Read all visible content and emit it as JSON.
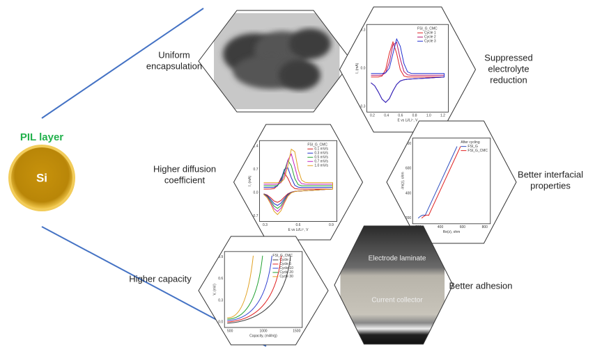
{
  "core": {
    "shell_label": "PIL layer",
    "core_label": "Si"
  },
  "panels": [
    {
      "label_lines": [
        "Uniform",
        "encapsulation"
      ],
      "inset": {
        "kind": "tem"
      }
    },
    {
      "label_lines": [
        "Suppressed",
        "electrolyte",
        "reduction"
      ],
      "inset": {
        "kind": "cv",
        "legend_title": "FSI_G_CMC",
        "legend": [
          {
            "name": "Cycle 1",
            "color": "#e02020"
          },
          {
            "name": "Cycle 2",
            "color": "#b0106a"
          },
          {
            "name": "Cycle 3",
            "color": "#2030d0"
          }
        ],
        "y_label": "I, (mA)",
        "x_label": "E vs Li/Li⁺, V",
        "y_ticks": [
          -0.3,
          {
            "value": 0,
            "label": "0.0"
          },
          0.3
        ],
        "x_ticks": [
          0.2,
          0.4,
          0.6,
          0.8,
          {
            "value": 1,
            "label": "1.0"
          },
          1.2
        ]
      }
    },
    {
      "label_lines": [
        "Higher diffusion",
        "coefficient"
      ],
      "inset": {
        "kind": "cv",
        "legend_title": "FSI_G_CMC",
        "legend": [
          {
            "name": "0.1 mV/s",
            "color": "#d01818"
          },
          {
            "name": "0.3 mV/s",
            "color": "#2030c8"
          },
          {
            "name": "0.5 mV/s",
            "color": "#20a030"
          },
          {
            "name": "0.7 mV/s",
            "color": "#c020c0"
          },
          {
            "name": "1.0 mV/s",
            "color": "#e0a020"
          }
        ],
        "y_label": "I, (mA)",
        "x_label": "E vs Li/Li⁺, V",
        "y_ticks": [
          -0.7,
          {
            "value": 0,
            "label": "0.0"
          },
          0.7,
          1.4
        ],
        "x_ticks": [
          0.3,
          0.6,
          0.9
        ]
      }
    },
    {
      "label_lines": [
        "Better interfacial",
        "properties"
      ],
      "inset": {
        "kind": "eis",
        "legend_title": "After cycling",
        "legend": [
          {
            "name": "FSI_G",
            "color": "#3050c0"
          },
          {
            "name": "FSI_G_CMC",
            "color": "#e02020"
          }
        ],
        "y_label": "-Im(z), ohm",
        "x_label": "Re(z), ohm",
        "y_ticks": [
          200,
          400,
          600,
          800
        ],
        "x_ticks": [
          200,
          400,
          600,
          800
        ]
      }
    },
    {
      "label_lines": [
        "Higher capacity"
      ],
      "inset": {
        "kind": "cap",
        "legend_title": "FSI_G_CMC",
        "legend": [
          {
            "name": "Cycle 1",
            "color": "#404040"
          },
          {
            "name": "Cycle 5",
            "color": "#e02020"
          },
          {
            "name": "Cycle 10",
            "color": "#3040d0"
          },
          {
            "name": "Cycle 20",
            "color": "#20a030"
          },
          {
            "name": "Cycle 30",
            "color": "#e0a020"
          }
        ],
        "y_label": "V, (mV)",
        "x_label": "Capacity, (mAh/g)",
        "y_ticks": [
          {
            "value": 0,
            "label": "0.0"
          },
          0.3,
          0.6,
          0.9
        ],
        "x_ticks": [
          500,
          1000,
          1500
        ]
      }
    },
    {
      "label_lines": [
        "Better adhesion"
      ],
      "inset": {
        "kind": "sem",
        "annotations": [
          "Electrode laminate",
          "Current collector"
        ]
      }
    }
  ]
}
